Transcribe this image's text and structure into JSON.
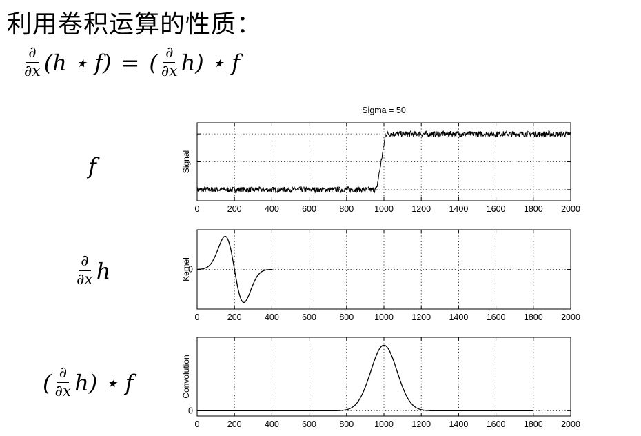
{
  "title": "利用卷积运算的性质：",
  "formula": {
    "d": "∂",
    "dx": "∂x",
    "lhs": "(h ⋆ f)",
    "eq": "=",
    "open": "(",
    "h": "h",
    "rhs_tail": ") ⋆ f"
  },
  "row_labels": {
    "f": "f",
    "dh_num": "∂",
    "dh_den": "∂x",
    "dh_h": "h",
    "conv_open": "(",
    "conv_num": "∂",
    "conv_den": "∂x",
    "conv_h": "h",
    "conv_tail": ") ⋆ f"
  },
  "chart_data": [
    {
      "type": "line",
      "title": "Sigma = 50",
      "xlabel": "",
      "ylabel": "Signal",
      "xlim": [
        0,
        2000
      ],
      "xticks": [
        0,
        200,
        400,
        600,
        800,
        1000,
        1200,
        1400,
        1600,
        1800,
        2000
      ],
      "yticks": [],
      "grid": true,
      "series": [
        {
          "x": [
            0,
            960,
            1010,
            2000
          ],
          "y": [
            0,
            0,
            1,
            1
          ],
          "noise": 0.05
        }
      ]
    },
    {
      "type": "line",
      "title": "",
      "xlabel": "",
      "ylabel": "Kernel",
      "xlim": [
        0,
        2000
      ],
      "xticks": [
        0,
        200,
        400,
        600,
        800,
        1000,
        1200,
        1400,
        1600,
        1800,
        2000
      ],
      "yticks": [
        0
      ],
      "grid": true,
      "series": [
        {
          "x": [
            0,
            50,
            100,
            150,
            200,
            250,
            300,
            350,
            400
          ],
          "y": [
            0.01,
            0.25,
            0.8,
            1.0,
            0,
            -1.0,
            -0.8,
            -0.25,
            -0.01
          ]
        }
      ]
    },
    {
      "type": "line",
      "title": "",
      "xlabel": "",
      "ylabel": "Convolution",
      "xlim": [
        0,
        2000
      ],
      "xticks": [
        0,
        200,
        400,
        600,
        800,
        1000,
        1200,
        1400,
        1600,
        1800,
        2000
      ],
      "yticks": [
        0
      ],
      "grid": true,
      "series": [
        {
          "x": [
            0,
            200,
            800,
            900,
            950,
            1000,
            1050,
            1100,
            1200,
            1800
          ],
          "y": [
            0,
            0,
            0.01,
            0.3,
            0.8,
            1.0,
            0.8,
            0.3,
            0.01,
            0
          ]
        }
      ]
    }
  ]
}
